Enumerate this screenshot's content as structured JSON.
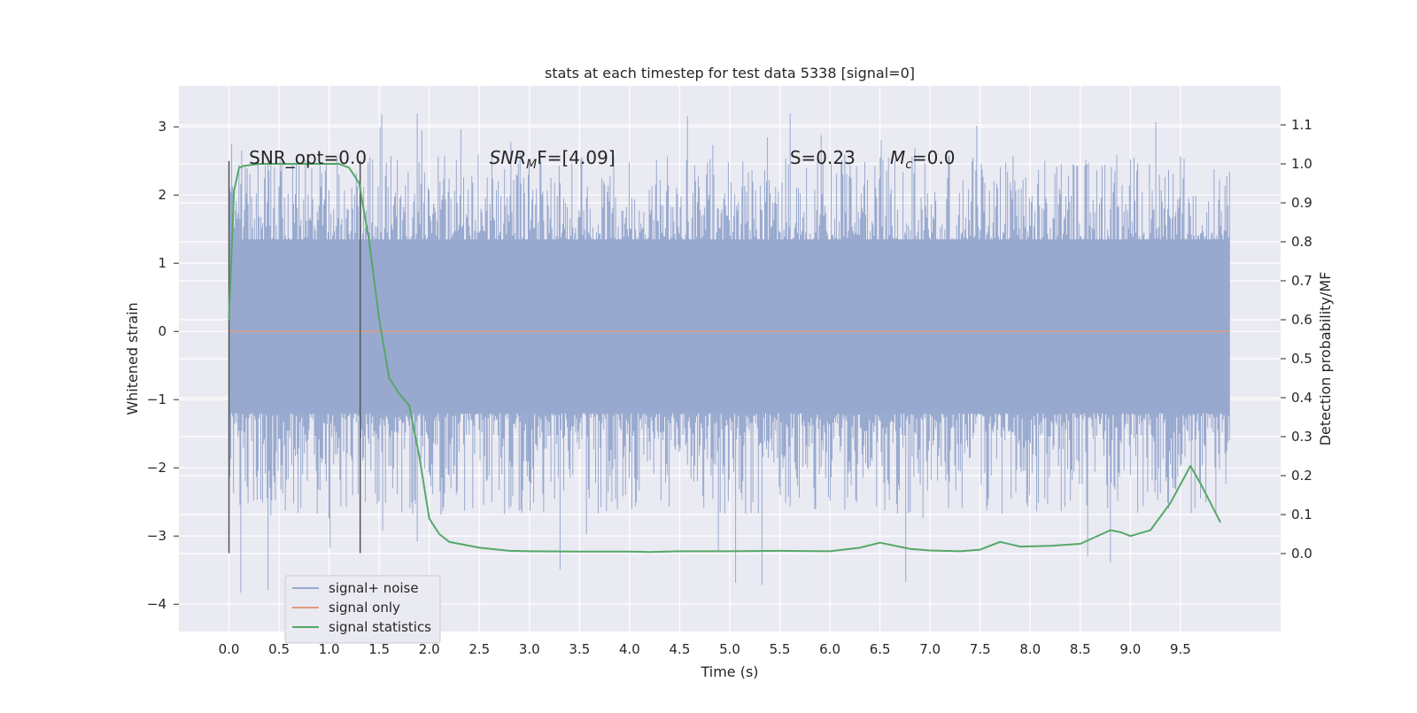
{
  "chart_data": {
    "type": "line",
    "title": "stats at each timestep for test data 5338 [signal=0]",
    "xlabel": "Time (s)",
    "ylabel_left": "Whitened strain",
    "ylabel_right": "Detection probability/MF",
    "xlim": [
      -0.5,
      10.5
    ],
    "ylim_left": [
      -4.4,
      3.6
    ],
    "ylim_right": [
      -0.2,
      1.2
    ],
    "x_ticks": [
      "0.0",
      "0.5",
      "1.0",
      "1.5",
      "2.0",
      "2.5",
      "3.0",
      "3.5",
      "4.0",
      "4.5",
      "5.0",
      "5.5",
      "6.0",
      "6.5",
      "7.0",
      "7.5",
      "8.0",
      "8.5",
      "9.0",
      "9.5"
    ],
    "x_tick_values": [
      0.0,
      0.5,
      1.0,
      1.5,
      2.0,
      2.5,
      3.0,
      3.5,
      4.0,
      4.5,
      5.0,
      5.5,
      6.0,
      6.5,
      7.0,
      7.5,
      8.0,
      8.5,
      9.0,
      9.5
    ],
    "y_ticks_left": [
      "3",
      "2",
      "1",
      "0",
      "−1",
      "−2",
      "−3",
      "−4"
    ],
    "y_tick_values_left": [
      3,
      2,
      1,
      0,
      -1,
      -2,
      -3,
      -4
    ],
    "y_ticks_right": [
      "1.1",
      "1.0",
      "0.9",
      "0.8",
      "0.7",
      "0.6",
      "0.5",
      "0.4",
      "0.3",
      "0.2",
      "0.1",
      "0.0"
    ],
    "y_tick_values_right": [
      1.1,
      1.0,
      0.9,
      0.8,
      0.7,
      0.6,
      0.5,
      0.4,
      0.3,
      0.2,
      0.1,
      0.0
    ],
    "grid": true,
    "legend_placement": "lower-left",
    "annotations": [
      {
        "text": "SNR_opt=0.0",
        "x": 0.2,
        "y_right": 1.0
      },
      {
        "text_main": "SNR",
        "text_sub": "M",
        "text_after": "F=[4.09]",
        "x": 2.6,
        "y_right": 1.0
      },
      {
        "text": "S=0.23",
        "x": 5.6,
        "y_right": 1.0
      },
      {
        "text_main": "M",
        "text_sub": "c",
        "text_after": "=0.0",
        "x": 6.6,
        "y_right": 1.0
      }
    ],
    "vlines": [
      {
        "x": 0.0,
        "y_from": -3.25,
        "y_to": 2.5
      },
      {
        "x": 1.31,
        "y_from": -3.25,
        "y_to": 2.5
      }
    ],
    "series": [
      {
        "name": "signal+ noise",
        "color": "#98a9cf",
        "axis": "left",
        "x_range": [
          0.0,
          9.99
        ],
        "envelope_upper_typical": 1.35,
        "envelope_lower_typical": -1.2,
        "peaks_max": 3.2,
        "peaks_min": -3.95
      },
      {
        "name": "signal only",
        "color": "#e29b80",
        "axis": "left",
        "x": [
          0.0,
          9.99
        ],
        "y": [
          0.0,
          0.0
        ]
      },
      {
        "name": "signal statistics",
        "color": "#55a868",
        "axis": "right",
        "x": [
          0.0,
          0.05,
          0.1,
          0.15,
          0.3,
          0.5,
          0.8,
          1.0,
          1.1,
          1.2,
          1.3,
          1.4,
          1.5,
          1.6,
          1.7,
          1.8,
          1.9,
          2.0,
          2.1,
          2.2,
          2.5,
          2.8,
          3.0,
          3.5,
          4.0,
          4.2,
          4.5,
          5.0,
          5.5,
          6.0,
          6.3,
          6.5,
          6.8,
          7.0,
          7.3,
          7.5,
          7.7,
          7.9,
          8.2,
          8.5,
          8.8,
          8.9,
          9.0,
          9.2,
          9.4,
          9.6,
          9.7,
          9.9
        ],
        "y": [
          0.6,
          0.93,
          0.99,
          0.995,
          1.0,
          1.0,
          1.0,
          1.0,
          1.0,
          0.99,
          0.95,
          0.8,
          0.6,
          0.45,
          0.41,
          0.38,
          0.25,
          0.09,
          0.05,
          0.03,
          0.015,
          0.007,
          0.006,
          0.005,
          0.005,
          0.004,
          0.006,
          0.006,
          0.007,
          0.006,
          0.015,
          0.028,
          0.012,
          0.008,
          0.006,
          0.01,
          0.03,
          0.018,
          0.02,
          0.025,
          0.06,
          0.055,
          0.045,
          0.06,
          0.13,
          0.225,
          0.18,
          0.08
        ]
      }
    ]
  }
}
